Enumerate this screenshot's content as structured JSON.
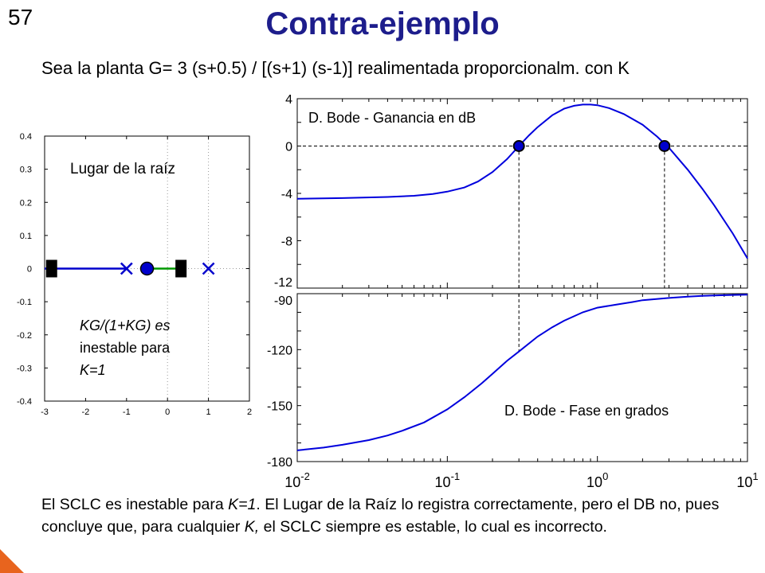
{
  "slide": {
    "number": "57",
    "title": "Contra-ejemplo",
    "subtitle": "Sea la planta G= 3 (s+0.5) / [(s+1) (s-1)] realimentada proporcionalm. con K",
    "footer": {
      "t1": "El SCLC es inestable para ",
      "k1": "K=1",
      "t2": ". El Lugar de la Raíz lo registra correctamente, pero el DB no, pues concluye que, para cualquier ",
      "k2": "K,",
      "t3": " el SCLC siempre es estable, lo cual es incorrecto."
    },
    "accent_color": "#e8641e"
  },
  "chart_data": [
    {
      "type": "scatter",
      "title": "Lugar de la raíz",
      "xlim": [
        -3,
        2
      ],
      "ylim": [
        -0.4,
        0.4
      ],
      "xticks": [
        "-3",
        "-2",
        "-1",
        "0",
        "1",
        "2"
      ],
      "yticks": [
        "-0.4",
        "-0.3",
        "-0.2",
        "-0.1",
        "0",
        "0.1",
        "0.2",
        "0.3",
        "0.4"
      ],
      "grid": "dotted",
      "poles": [
        -1,
        1
      ],
      "zeros": [
        -0.5
      ],
      "closed_loop_poles_k1": [
        -2.83,
        0.33
      ],
      "branches": [
        {
          "from": -1,
          "to": -3,
          "color": "#0000cc"
        },
        {
          "from": 0.33,
          "to": -0.5,
          "color": "#009900"
        }
      ],
      "annotation": {
        "lines": [
          "KG/(1+KG) es",
          "inestable para",
          "K=1"
        ]
      },
      "colors": {
        "pole": "#0000cc",
        "branch1": "#0000cc",
        "branch2": "#009900",
        "marker": "#000000"
      }
    },
    {
      "type": "line",
      "title": "D. Bode - Ganancia en dB",
      "xscale": "log",
      "xlim": [
        0.01,
        10
      ],
      "ylim": [
        -12,
        4
      ],
      "yticks": [
        "4",
        "0",
        "-4",
        "-8",
        "-12"
      ],
      "series": [
        {
          "name": "Ganancia (dB)",
          "x": [
            0.01,
            0.02,
            0.04,
            0.06,
            0.08,
            0.1,
            0.13,
            0.16,
            0.2,
            0.25,
            0.3,
            0.35,
            0.4,
            0.5,
            0.6,
            0.7,
            0.8,
            0.9,
            1.0,
            1.2,
            1.5,
            2.0,
            2.5,
            2.8,
            3.0,
            4.0,
            5.0,
            6.0,
            8.0,
            10.0
          ],
          "values": [
            -4.45,
            -4.4,
            -4.3,
            -4.2,
            -4.05,
            -3.85,
            -3.5,
            -3.0,
            -2.2,
            -1.1,
            0.0,
            0.9,
            1.6,
            2.6,
            3.15,
            3.4,
            3.5,
            3.5,
            3.45,
            3.2,
            2.7,
            1.8,
            0.8,
            0.2,
            -0.15,
            -2.0,
            -3.6,
            -5.0,
            -7.4,
            -9.5
          ]
        }
      ],
      "crossover_points": [
        {
          "x": 0.3,
          "y": 0
        },
        {
          "x": 2.8,
          "y": 0
        }
      ],
      "zero_line": "dashed",
      "series_color": "#0000dd"
    },
    {
      "type": "line",
      "title": "D. Bode - Fase en grados",
      "xscale": "log",
      "xlim": [
        0.01,
        10
      ],
      "ylim": [
        -180,
        -90
      ],
      "yticks": [
        "-90",
        "-120",
        "-150",
        "-180"
      ],
      "xticks": [
        {
          "base": "10",
          "exp": "-2"
        },
        {
          "base": "10",
          "exp": "-1"
        },
        {
          "base": "10",
          "exp": "0"
        },
        {
          "base": "10",
          "exp": "1"
        }
      ],
      "series": [
        {
          "name": "Fase (grados)",
          "x": [
            0.01,
            0.015,
            0.02,
            0.03,
            0.04,
            0.05,
            0.07,
            0.1,
            0.13,
            0.17,
            0.2,
            0.25,
            0.3,
            0.4,
            0.5,
            0.6,
            0.8,
            1.0,
            1.3,
            1.7,
            2.0,
            3.0,
            4.0,
            5.0,
            7.0,
            10.0
          ],
          "values": [
            -174.0,
            -172.5,
            -171.0,
            -168.5,
            -166.0,
            -163.5,
            -159.0,
            -152.0,
            -145.5,
            -138.0,
            -133.0,
            -126.0,
            -121.0,
            -113.0,
            -108.0,
            -104.5,
            -100.0,
            -97.5,
            -96.0,
            -94.5,
            -93.5,
            -92.3,
            -91.6,
            -91.2,
            -90.8,
            -90.5
          ]
        }
      ],
      "series_color": "#0000dd"
    }
  ]
}
